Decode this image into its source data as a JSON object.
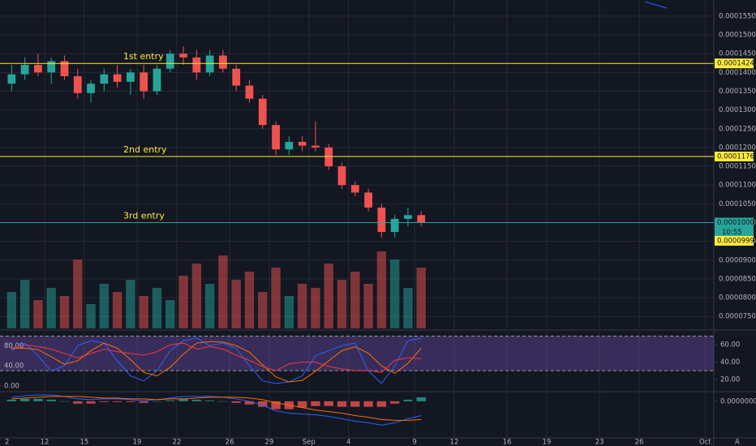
{
  "chart_data": {
    "type": "candlestick",
    "x": [
      9.5,
      10.5,
      11.5,
      12.5,
      13.5,
      14.5,
      15.5,
      16.5,
      17.5,
      18.5,
      19.5,
      20.5,
      21.5,
      22.5,
      23.5,
      24.5,
      25.5,
      26.5,
      27.5,
      28.5,
      29.5,
      30.5,
      31.5,
      32.5,
      33.5,
      34.5,
      35.5,
      36.5,
      37.5,
      38.5,
      39.5,
      40.5
    ],
    "open": [
      0.000137,
      0.0001395,
      0.000142,
      0.00014,
      0.000143,
      0.000139,
      0.0001345,
      0.000137,
      0.0001395,
      0.0001375,
      0.00014,
      0.000135,
      0.000141,
      0.000145,
      0.000144,
      0.00014,
      0.0001445,
      0.000141,
      0.0001365,
      0.000133,
      0.000126,
      0.0001195,
      0.0001215,
      0.0001205,
      0.00012,
      0.000115,
      0.00011,
      0.000108,
      0.000104,
      9.75e-05,
      0.000101,
      0.000102
    ],
    "high": [
      0.000142,
      0.000144,
      0.000145,
      0.000144,
      0.0001445,
      0.000141,
      0.000138,
      0.000141,
      0.000142,
      0.000141,
      0.000142,
      0.000142,
      0.000146,
      0.000147,
      0.000146,
      0.000146,
      0.000146,
      0.000142,
      0.000138,
      0.000134,
      0.000127,
      0.000123,
      0.000123,
      0.000127,
      0.000121,
      0.000116,
      0.000111,
      0.000109,
      0.000105,
      0.000102,
      0.000104,
      0.000103
    ],
    "low": [
      0.000135,
      0.000138,
      0.000139,
      0.000137,
      0.000138,
      0.000133,
      0.000132,
      0.000135,
      0.000136,
      0.000134,
      0.000133,
      0.000134,
      0.00014,
      0.000142,
      0.000138,
      0.000139,
      0.00014,
      0.000135,
      0.000132,
      0.000125,
      0.000118,
      0.000118,
      0.000119,
      0.000119,
      0.000114,
      0.000109,
      0.000107,
      0.000103,
      9.6e-05,
      9.6e-05,
      9.9e-05,
      9.9e-05
    ],
    "close": [
      0.0001395,
      0.000142,
      0.00014,
      0.000143,
      0.000139,
      0.0001345,
      0.000137,
      0.0001395,
      0.0001375,
      0.00014,
      0.000135,
      0.000141,
      0.000145,
      0.000144,
      0.00014,
      0.0001445,
      0.000141,
      0.0001365,
      0.000133,
      0.000126,
      0.0001195,
      0.0001215,
      0.0001205,
      0.00012,
      0.000115,
      0.00011,
      0.000108,
      0.000104,
      9.75e-05,
      0.000101,
      0.000102,
      0.0001
    ],
    "volume": [
      45,
      60,
      35,
      50,
      40,
      85,
      30,
      55,
      45,
      60,
      40,
      50,
      35,
      65,
      80,
      55,
      90,
      60,
      70,
      45,
      75,
      40,
      55,
      50,
      80,
      60,
      70,
      55,
      95,
      85,
      50,
      75
    ],
    "volume_ylim": [
      0,
      105
    ],
    "up_color": "#26a69a",
    "down_color": "#ef5350",
    "xlim": [
      8.62,
      62.65
    ],
    "xticks": [
      12,
      15,
      19,
      22,
      26,
      29,
      {
        "value": 32,
        "label": "Sep"
      },
      {
        "value": 35,
        "label": "4"
      },
      {
        "value": 40,
        "label": "9"
      },
      {
        "value": 43,
        "label": "12"
      },
      {
        "value": 47,
        "label": "16"
      },
      {
        "value": 50,
        "label": "19"
      },
      {
        "value": 54,
        "label": "23"
      },
      {
        "value": 57,
        "label": "26"
      },
      {
        "value": 62,
        "label": "Oct"
      }
    ],
    "ylim": [
      7.18e-05,
      0.0001593
    ],
    "yticks": [
      {
        "value": 7.5e-05,
        "label": "0.0000750"
      },
      {
        "value": 8e-05,
        "label": "0.0000800"
      },
      {
        "value": 8.5e-05,
        "label": "0.0000850"
      },
      {
        "value": 9e-05,
        "label": "0.0000900"
      },
      {
        "value": 9.5e-05,
        "label": "0.0000950"
      },
      {
        "value": 0.0001,
        "label": "0.0001000"
      },
      {
        "value": 0.000105,
        "label": "0.0001050"
      },
      {
        "value": 0.00011,
        "label": "0.0001100"
      },
      {
        "value": 0.000115,
        "label": "0.0001150"
      },
      {
        "value": 0.00012,
        "label": "0.0001200"
      },
      {
        "value": 0.000125,
        "label": "0.0001250"
      },
      {
        "value": 0.00013,
        "label": "0.0001300"
      },
      {
        "value": 0.000135,
        "label": "0.0001350"
      },
      {
        "value": 0.00014,
        "label": "0.0001400"
      },
      {
        "value": 0.000145,
        "label": "0.0001450"
      },
      {
        "value": 0.00015,
        "label": "0.0001500"
      },
      {
        "value": 0.000155,
        "label": "0.0001550"
      }
    ],
    "grid": true,
    "levels": [
      {
        "annotation": "1st entry",
        "value": 0.0001424,
        "value_label": "0.0001424",
        "color": "#ffeb3b"
      },
      {
        "annotation": "2nd entry",
        "value": 0.0001176,
        "value_label": "0.0001176",
        "color": "#ffeb3b"
      },
      {
        "annotation": "3rd entry",
        "value": 0.0001,
        "value_label": "0.0001000",
        "color": "#26a69a"
      }
    ],
    "countdown": "10:55",
    "prev_price": {
      "value": 9.99e-05,
      "value_label": "0.0000999",
      "color": "#ffeb3b"
    },
    "stoch_rsi": {
      "ylim": [
        -9.8,
        107.8
      ],
      "yticks": [
        {
          "value": 80,
          "label": "80.00"
        },
        {
          "value": 40,
          "label": "40.00"
        },
        {
          "value": 0,
          "label": "0.00"
        }
      ],
      "k_values": [
        70,
        85,
        60,
        30,
        40,
        80,
        90,
        85,
        50,
        20,
        10,
        30,
        70,
        90,
        95,
        80,
        85,
        75,
        40,
        10,
        5,
        8,
        20,
        60,
        70,
        80,
        85,
        30,
        5,
        40,
        90,
        95
      ],
      "d_values": [
        75,
        75,
        72,
        58,
        43,
        50,
        70,
        85,
        75,
        52,
        27,
        20,
        37,
        63,
        85,
        88,
        87,
        80,
        67,
        42,
        18,
        8,
        11,
        29,
        50,
        70,
        78,
        65,
        40,
        25,
        45,
        75
      ],
      "k_color": "#2962ff",
      "d_color": "#ff6d00"
    },
    "rsi": {
      "ylim": [
        6.7,
        75.2
      ],
      "yticks": [
        {
          "value": 60,
          "label": "60.00"
        },
        {
          "value": 40,
          "label": "40.00"
        },
        {
          "value": 20,
          "label": "20.00"
        }
      ],
      "band": [
        30,
        70
      ],
      "values": [
        55,
        60,
        58,
        55,
        50,
        45,
        50,
        55,
        52,
        50,
        48,
        52,
        60,
        62,
        55,
        58,
        55,
        48,
        42,
        35,
        30,
        38,
        40,
        40,
        35,
        32,
        30,
        30,
        28,
        42,
        45,
        44
      ],
      "color": "#f23645"
    },
    "macd": {
      "ylim": [
        -4.5e-06,
        1e-06
      ],
      "yticks": [
        {
          "value": 0,
          "label": "0.0000000"
        }
      ],
      "macd_values": [
        5e-07,
        7e-07,
        8e-07,
        8e-07,
        6e-07,
        3e-07,
        2e-07,
        3e-07,
        3e-07,
        2e-07,
        1e-07,
        2e-07,
        4e-07,
        6e-07,
        6e-07,
        6e-07,
        5e-07,
        3e-07,
        0,
        -5e-07,
        -1.2e-06,
        -1.5e-06,
        -1.6e-06,
        -1.7e-06,
        -1.9e-06,
        -2.2e-06,
        -2.5e-06,
        -2.7e-06,
        -3e-06,
        -2.7e-06,
        -2.2e-06,
        -1.8e-06
      ],
      "signal_values": [
        3e-07,
        4e-07,
        5e-07,
        6e-07,
        6e-07,
        6e-07,
        5e-07,
        4e-07,
        4e-07,
        3e-07,
        3e-07,
        2e-07,
        3e-07,
        3e-07,
        4e-07,
        5e-07,
        5e-07,
        5e-07,
        4e-07,
        2e-07,
        -2e-07,
        -5e-07,
        -8e-07,
        -1.1e-06,
        -1.3e-06,
        -1.5e-06,
        -1.8e-06,
        -2e-06,
        -2.3e-06,
        -2.4e-06,
        -2.4e-06,
        -2.3e-06
      ],
      "hist_values": [
        2e-07,
        3e-07,
        3e-07,
        2e-07,
        0,
        -3e-07,
        -3e-07,
        -1e-07,
        -1e-07,
        -1e-07,
        -2e-07,
        0,
        1e-07,
        3e-07,
        2e-07,
        1e-07,
        0,
        -2e-07,
        -4e-07,
        -7e-07,
        -1e-06,
        -1e-06,
        -8e-07,
        -6e-07,
        -6e-07,
        -7e-07,
        -7e-07,
        -7e-07,
        -7e-07,
        -3e-07,
        2e-07,
        5e-07
      ],
      "macd_color": "#2962ff",
      "signal_color": "#ff6d00"
    },
    "pane_number": "2",
    "scale_mode": "A"
  }
}
